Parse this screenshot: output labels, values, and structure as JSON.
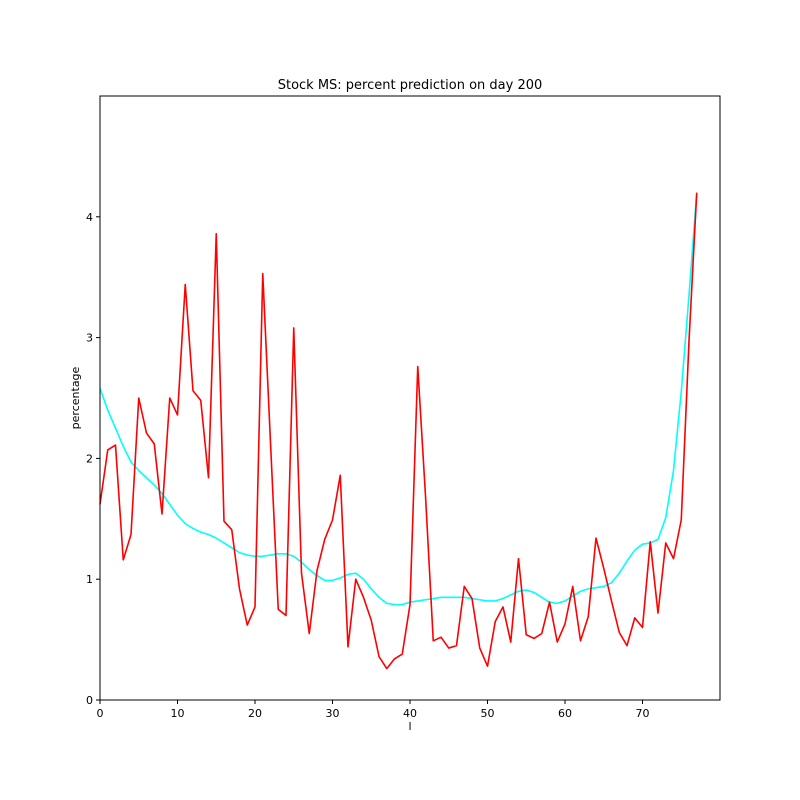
{
  "chart_data": {
    "type": "line",
    "title": "Stock MS: percent prediction on day 200",
    "xlabel": "l",
    "ylabel": "percentage",
    "xlim": [
      0,
      80
    ],
    "ylim": [
      0,
      5
    ],
    "x_ticks": [
      0,
      10,
      20,
      30,
      40,
      50,
      60,
      70
    ],
    "y_ticks": [
      0,
      1,
      2,
      3,
      4
    ],
    "grid": false,
    "series": [
      {
        "color": "#ff0000",
        "values": [
          1.62,
          2.07,
          2.11,
          1.16,
          1.37,
          2.5,
          2.21,
          2.12,
          1.54,
          2.5,
          2.36,
          3.44,
          2.56,
          2.48,
          1.84,
          3.86,
          1.48,
          1.41,
          0.92,
          0.62,
          0.77,
          3.53,
          2.13,
          0.75,
          0.7,
          3.08,
          1.05,
          0.55,
          1.07,
          1.33,
          1.49,
          1.86,
          0.44,
          1.0,
          0.85,
          0.66,
          0.36,
          0.26,
          0.34,
          0.38,
          0.79,
          2.76,
          1.69,
          0.49,
          0.52,
          0.43,
          0.45,
          0.94,
          0.84,
          0.43,
          0.28,
          0.65,
          0.77,
          0.48,
          1.17,
          0.54,
          0.51,
          0.55,
          0.81,
          0.48,
          0.63,
          0.94,
          0.49,
          0.69,
          1.34,
          1.09,
          0.82,
          0.56,
          0.45,
          0.68,
          0.6,
          1.31,
          0.72,
          1.3,
          1.17,
          1.49,
          2.97,
          4.2
        ]
      },
      {
        "color": "#00ffff",
        "values": [
          2.58,
          2.4,
          2.25,
          2.1,
          1.97,
          1.9,
          1.84,
          1.78,
          1.71,
          1.62,
          1.53,
          1.46,
          1.42,
          1.39,
          1.37,
          1.34,
          1.3,
          1.26,
          1.22,
          1.2,
          1.19,
          1.19,
          1.2,
          1.21,
          1.21,
          1.19,
          1.14,
          1.08,
          1.03,
          0.99,
          0.99,
          1.01,
          1.04,
          1.05,
          1.0,
          0.92,
          0.85,
          0.8,
          0.79,
          0.79,
          0.81,
          0.82,
          0.83,
          0.84,
          0.85,
          0.85,
          0.85,
          0.85,
          0.84,
          0.83,
          0.82,
          0.82,
          0.84,
          0.87,
          0.9,
          0.91,
          0.89,
          0.85,
          0.81,
          0.8,
          0.82,
          0.86,
          0.9,
          0.92,
          0.93,
          0.94,
          0.97,
          1.05,
          1.15,
          1.24,
          1.29,
          1.3,
          1.33,
          1.51,
          1.9,
          2.55,
          3.35,
          4.2
        ]
      }
    ]
  }
}
